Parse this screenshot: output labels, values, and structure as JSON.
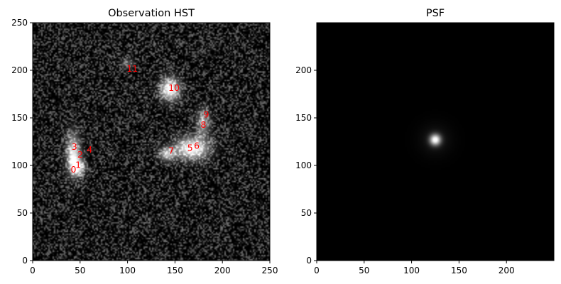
{
  "figure": {
    "background": "#ffffff",
    "annotation_color": "#ff0000"
  },
  "chart_data": [
    {
      "type": "heatmap",
      "title": "Observation HST",
      "xlabel": "",
      "ylabel": "",
      "colormap": "gray",
      "xlim": [
        0,
        250
      ],
      "ylim": [
        0,
        250
      ],
      "xticks": [
        0,
        50,
        100,
        150,
        200,
        250
      ],
      "yticks": [
        0,
        50,
        100,
        150,
        200,
        250
      ],
      "noise": "strong",
      "blobs": [
        {
          "x": 43,
          "y": 112,
          "sx": 5,
          "sy": 14,
          "amp": 0.9
        },
        {
          "x": 48,
          "y": 98,
          "sx": 5,
          "sy": 6,
          "amp": 0.8
        },
        {
          "x": 145,
          "y": 180,
          "sx": 7,
          "sy": 8,
          "amp": 1.0
        },
        {
          "x": 168,
          "y": 118,
          "sx": 12,
          "sy": 8,
          "amp": 1.0
        },
        {
          "x": 142,
          "y": 112,
          "sx": 6,
          "sy": 5,
          "amp": 0.7
        },
        {
          "x": 180,
          "y": 145,
          "sx": 5,
          "sy": 10,
          "amp": 0.55
        },
        {
          "x": 100,
          "y": 207,
          "sx": 5,
          "sy": 4,
          "amp": 0.3
        }
      ],
      "sources": [
        {
          "label": "0",
          "x": 43,
          "y": 95
        },
        {
          "label": "1",
          "x": 48,
          "y": 100
        },
        {
          "label": "2",
          "x": 50,
          "y": 111
        },
        {
          "label": "3",
          "x": 44,
          "y": 119
        },
        {
          "label": "4",
          "x": 60,
          "y": 116
        },
        {
          "label": "5",
          "x": 166,
          "y": 118
        },
        {
          "label": "6",
          "x": 173,
          "y": 120
        },
        {
          "label": "7",
          "x": 146,
          "y": 115
        },
        {
          "label": "8",
          "x": 180,
          "y": 142
        },
        {
          "label": "9",
          "x": 183,
          "y": 153
        },
        {
          "label": "10",
          "x": 149,
          "y": 181
        },
        {
          "label": "11",
          "x": 105,
          "y": 201
        }
      ]
    },
    {
      "type": "heatmap",
      "title": "PSF",
      "xlabel": "",
      "ylabel": "",
      "colormap": "gray",
      "xlim": [
        0,
        250
      ],
      "ylim": [
        0,
        250
      ],
      "xticks": [
        0,
        50,
        100,
        150,
        200
      ],
      "yticks": [
        0,
        50,
        100,
        150,
        200
      ],
      "noise": "none",
      "psf": {
        "x": 125,
        "y": 127,
        "sigma": 4
      }
    }
  ]
}
